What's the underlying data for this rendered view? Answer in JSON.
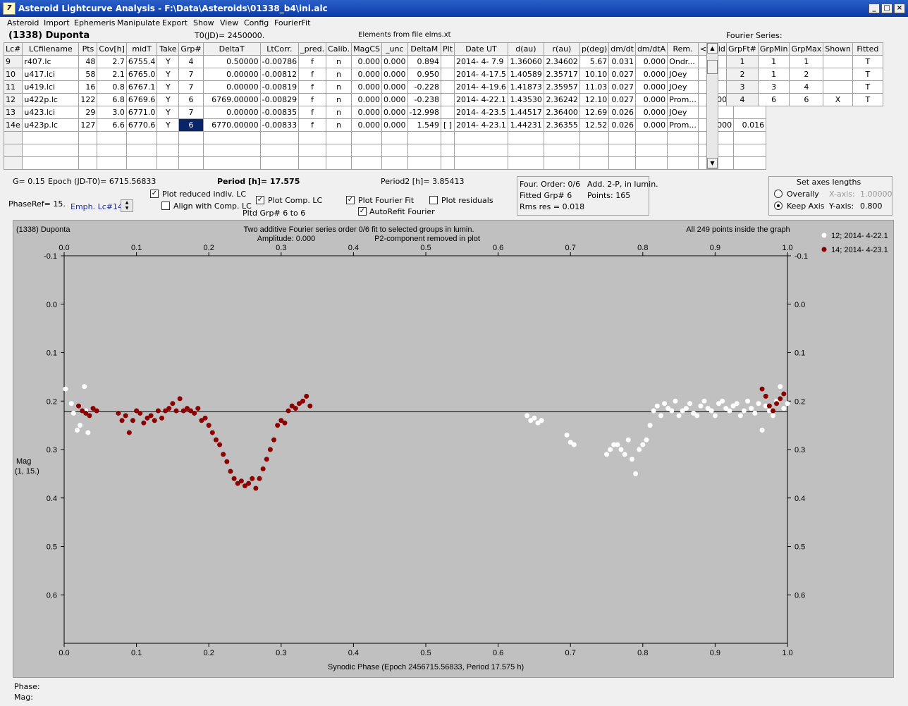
{
  "window": {
    "title": "Asteroid Lightcurve Analysis - F:\\Data\\Asteroids\\01338_b4\\ini.alc",
    "icon": "7"
  },
  "menu": [
    "Asteroid",
    "Import",
    "Ephemeris",
    "Manipulate",
    "Export",
    "Show",
    "View",
    "Config",
    "FourierFit"
  ],
  "header": {
    "asteroid": "(1338) Duponta",
    "t0": "T0(JD)= 2450000.",
    "elements": "Elements from file elms.xt"
  },
  "lc_table": {
    "columns": [
      "Lc#",
      "LCfilename",
      "Pts",
      "Cov[h]",
      "midT",
      "Take",
      "Grp#",
      "DeltaT",
      "LtCorr.",
      "_pred.",
      "Calib.",
      "MagCS",
      "_unc",
      "DeltaM",
      "Plt",
      "Date UT",
      "d(au)",
      "r(au)",
      "p(deg)",
      "dm/dt",
      "dm/dtA",
      "Rem.",
      "<resid>",
      "rms res"
    ],
    "rows": [
      [
        "9",
        "r407.lc",
        "48",
        "2.7",
        "6755.4",
        "Y",
        "4",
        "0.50000",
        "-0.00786",
        "f",
        "n",
        "0.000",
        "0.000",
        "0.894",
        "",
        "2014- 4- 7.9",
        "1.36060",
        "2.34602",
        "5.67",
        "0.031",
        "0.000",
        "Ondr...",
        "",
        ""
      ],
      [
        "10",
        "u417.lci",
        "58",
        "2.1",
        "6765.0",
        "Y",
        "7",
        "0.00000",
        "-0.00812",
        "f",
        "n",
        "0.000",
        "0.000",
        "0.950",
        "",
        "2014- 4-17.5",
        "1.40589",
        "2.35717",
        "10.10",
        "0.027",
        "0.000",
        "JOey",
        "",
        ""
      ],
      [
        "11",
        "u419.lci",
        "16",
        "0.8",
        "6767.1",
        "Y",
        "7",
        "0.00000",
        "-0.00819",
        "f",
        "n",
        "0.000",
        "0.000",
        "-0.228",
        "",
        "2014- 4-19.6",
        "1.41873",
        "2.35957",
        "11.03",
        "0.027",
        "0.000",
        "JOey",
        "",
        ""
      ],
      [
        "12",
        "u422p.lc",
        "122",
        "6.8",
        "6769.6",
        "Y",
        "6",
        "6769.00000",
        "-0.00829",
        "f",
        "n",
        "0.000",
        "0.000",
        "-0.238",
        "",
        "2014- 4-22.1",
        "1.43530",
        "2.36242",
        "12.10",
        "0.027",
        "0.000",
        "Prom...",
        "0.000",
        "0.019"
      ],
      [
        "13",
        "u423.lci",
        "29",
        "3.0",
        "6771.0",
        "Y",
        "7",
        "0.00000",
        "-0.00835",
        "f",
        "n",
        "0.000",
        "0.000",
        "-12.998",
        "",
        "2014- 4-23.5",
        "1.44517",
        "2.36400",
        "12.69",
        "0.026",
        "0.000",
        "JOey",
        "",
        ""
      ],
      [
        "14e",
        "u423p.lc",
        "127",
        "6.6",
        "6770.6",
        "Y",
        "6",
        "6770.00000",
        "-0.00833",
        "f",
        "n",
        "0.000",
        "0.000",
        "1.549",
        "[ ]",
        "2014- 4-23.1",
        "1.44231",
        "2.36355",
        "12.52",
        "0.026",
        "0.000",
        "Prom...",
        "0.000",
        "0.016"
      ]
    ]
  },
  "fourier_series": {
    "label": "Fourier Series:",
    "columns": [
      "GrpFt#",
      "GrpMin",
      "GrpMax",
      "Shown",
      "Fitted"
    ],
    "rows": [
      [
        "1",
        "1",
        "1",
        "",
        "T"
      ],
      [
        "2",
        "1",
        "2",
        "",
        "T"
      ],
      [
        "3",
        "3",
        "4",
        "",
        "T"
      ],
      [
        "4",
        "6",
        "6",
        "X",
        "T"
      ]
    ]
  },
  "info": {
    "g": "G= 0.15",
    "epoch": "Epoch (JD-T0)= 6715.56833",
    "period": "Period [h]= 17.575",
    "period2": "Period2 [h]= 3.85413",
    "phaseref": "PhaseRef= 15.",
    "emph": "Emph. Lc#14:",
    "plot_reduced": "Plot reduced indiv. LC",
    "align": "Align with Comp. LC",
    "plot_comp": "Plot Comp. LC",
    "pltd_grp": "Pltd Grp#  6  to   6",
    "plot_fourier": "Plot Fourier Fit",
    "autorefit": "AutoRefit Fourier",
    "plot_resid": "Plot residuals",
    "four_order": "Four. Order:  0/6",
    "add2p": "Add. 2-P, in lumin.",
    "fitted_grp": "Fitted Grp# 6",
    "points": "Points: 165",
    "rms": "Rms res     = 0.018",
    "axes_title": "Set axes lengths",
    "overally": "Overally",
    "keep_axis": "Keep Axis",
    "xaxis_label": "X-axis:",
    "xaxis_val": "1.00000",
    "yaxis_label": "Y-axis:",
    "yaxis_val": "0.800"
  },
  "plot_text": {
    "name": "(1338) Duponta",
    "line1": "Two additive Fourier series order 0/6 fit to selected groups in lumin.",
    "line2a": "Amplitude: 0.000",
    "line2b": "P2-component removed in plot",
    "inside": "All 249 points inside the graph",
    "ylabel1": "Mag",
    "ylabel2": "(1, 15.)",
    "xlabel": "Synodic Phase (Epoch 2456715.56833, Period 17.575 h)"
  },
  "status": {
    "phase": "Phase:",
    "mag": "Mag:"
  },
  "chart_data": {
    "type": "scatter",
    "xlim": [
      0.0,
      1.0
    ],
    "ylim": [
      -0.1,
      0.7
    ],
    "y_inverted": true,
    "x_ticks": [
      "0.0",
      "0.1",
      "0.2",
      "0.3",
      "0.4",
      "0.5",
      "0.6",
      "0.7",
      "0.8",
      "0.9",
      "1.0"
    ],
    "y_ticks": [
      "-0.1",
      "0.0",
      "0.1",
      "0.2",
      "0.3",
      "0.4",
      "0.5",
      "0.6"
    ],
    "fit_line_y": 0.222,
    "legend": [
      "12; 2014- 4-22.1",
      "14; 2014- 4-23.1"
    ],
    "colors": {
      "s12": "#ffffff",
      "s14": "#8b0000"
    },
    "series": [
      {
        "name": "12; 2014- 4-22.1",
        "color": "#ffffff",
        "x": [
          0.002,
          0.01,
          0.013,
          0.018,
          0.022,
          0.028,
          0.03,
          0.033,
          0.035,
          0.64,
          0.645,
          0.65,
          0.655,
          0.66,
          0.695,
          0.7,
          0.705,
          0.75,
          0.755,
          0.76,
          0.765,
          0.77,
          0.775,
          0.78,
          0.785,
          0.79,
          0.795,
          0.8,
          0.805,
          0.81,
          0.815,
          0.82,
          0.825,
          0.83,
          0.835,
          0.84,
          0.845,
          0.85,
          0.855,
          0.86,
          0.865,
          0.87,
          0.875,
          0.88,
          0.885,
          0.89,
          0.895,
          0.9,
          0.905,
          0.91,
          0.915,
          0.92,
          0.925,
          0.93,
          0.935,
          0.94,
          0.945,
          0.95,
          0.955,
          0.96,
          0.965,
          0.97,
          0.975,
          0.98,
          0.985,
          0.99,
          0.995,
          1.0
        ],
        "y": [
          0.175,
          0.205,
          0.225,
          0.26,
          0.25,
          0.17,
          0.22,
          0.265,
          0.23,
          0.23,
          0.24,
          0.235,
          0.245,
          0.24,
          0.27,
          0.285,
          0.29,
          0.31,
          0.3,
          0.29,
          0.29,
          0.3,
          0.31,
          0.28,
          0.32,
          0.35,
          0.3,
          0.29,
          0.28,
          0.25,
          0.22,
          0.21,
          0.23,
          0.205,
          0.215,
          0.22,
          0.2,
          0.23,
          0.22,
          0.215,
          0.205,
          0.225,
          0.23,
          0.21,
          0.2,
          0.215,
          0.22,
          0.23,
          0.205,
          0.2,
          0.215,
          0.22,
          0.21,
          0.205,
          0.23,
          0.22,
          0.2,
          0.215,
          0.225,
          0.205,
          0.26,
          0.21,
          0.22,
          0.23,
          0.2,
          0.17,
          0.215,
          0.205
        ]
      },
      {
        "name": "14; 2014- 4-23.1",
        "color": "#8b0000",
        "x": [
          0.02,
          0.025,
          0.03,
          0.035,
          0.04,
          0.045,
          0.075,
          0.08,
          0.085,
          0.09,
          0.095,
          0.1,
          0.105,
          0.11,
          0.115,
          0.12,
          0.125,
          0.13,
          0.135,
          0.14,
          0.145,
          0.15,
          0.155,
          0.16,
          0.165,
          0.17,
          0.175,
          0.18,
          0.185,
          0.19,
          0.195,
          0.2,
          0.205,
          0.21,
          0.215,
          0.22,
          0.225,
          0.23,
          0.235,
          0.24,
          0.245,
          0.25,
          0.255,
          0.26,
          0.265,
          0.27,
          0.275,
          0.28,
          0.285,
          0.29,
          0.295,
          0.3,
          0.305,
          0.31,
          0.315,
          0.32,
          0.325,
          0.33,
          0.335,
          0.34,
          0.965,
          0.97,
          0.975,
          0.98,
          0.985,
          0.99,
          0.995
        ],
        "y": [
          0.21,
          0.22,
          0.225,
          0.23,
          0.215,
          0.22,
          0.225,
          0.24,
          0.23,
          0.265,
          0.24,
          0.22,
          0.225,
          0.245,
          0.235,
          0.23,
          0.24,
          0.22,
          0.235,
          0.22,
          0.215,
          0.205,
          0.22,
          0.195,
          0.22,
          0.215,
          0.22,
          0.225,
          0.215,
          0.24,
          0.235,
          0.25,
          0.265,
          0.28,
          0.29,
          0.31,
          0.325,
          0.345,
          0.36,
          0.37,
          0.365,
          0.375,
          0.37,
          0.36,
          0.38,
          0.36,
          0.34,
          0.32,
          0.3,
          0.28,
          0.25,
          0.24,
          0.245,
          0.22,
          0.21,
          0.215,
          0.205,
          0.2,
          0.19,
          0.21,
          0.175,
          0.19,
          0.21,
          0.22,
          0.205,
          0.195,
          0.185
        ]
      }
    ]
  }
}
